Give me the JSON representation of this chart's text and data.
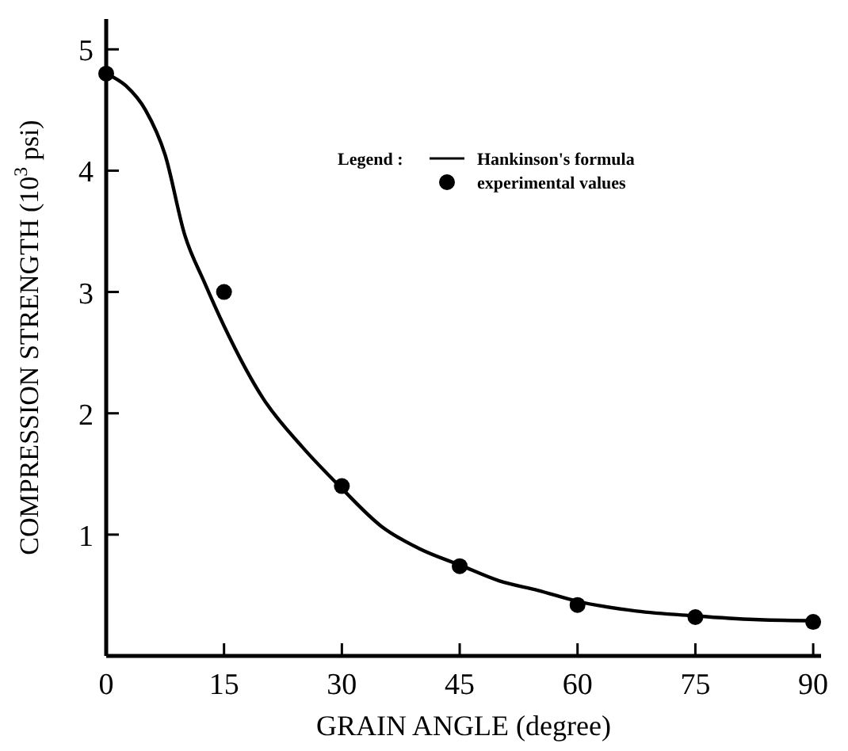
{
  "chart_data": {
    "type": "line",
    "xlabel": "GRAIN ANGLE  (degree)",
    "ylabel": "COMPRESSION  STRENGTH  (10$^{3}$ psi)",
    "legend_title": "Legend :",
    "legend": "top right",
    "xlim": [
      0,
      91
    ],
    "ylim": [
      0,
      5.25
    ],
    "xticks": [
      0,
      15,
      30,
      45,
      60,
      75,
      90
    ],
    "yticks": [
      {
        "value": 0,
        "label": null
      },
      1,
      2,
      3,
      4,
      5
    ],
    "series": [
      {
        "name": "Hankinson's formula",
        "color": "#000000",
        "x": [
          0,
          2.5,
          5,
          7.5,
          10,
          12.5,
          15,
          20,
          25,
          30,
          35,
          40,
          45,
          50,
          55,
          60,
          67.5,
          75,
          82.5,
          90
        ],
        "values": [
          4.8,
          4.7,
          4.5,
          4.13,
          3.47,
          3.08,
          2.72,
          2.12,
          1.72,
          1.38,
          1.07,
          0.88,
          0.75,
          0.62,
          0.54,
          0.45,
          0.37,
          0.33,
          0.3,
          0.29
        ]
      },
      {
        "name": "experimental values",
        "type": "scatter",
        "marker": "circle",
        "color": "#000000",
        "x": [
          0,
          15,
          30,
          45,
          60,
          75,
          90
        ],
        "values": [
          4.8,
          3.0,
          1.4,
          0.74,
          0.42,
          0.32,
          0.28
        ]
      }
    ]
  }
}
